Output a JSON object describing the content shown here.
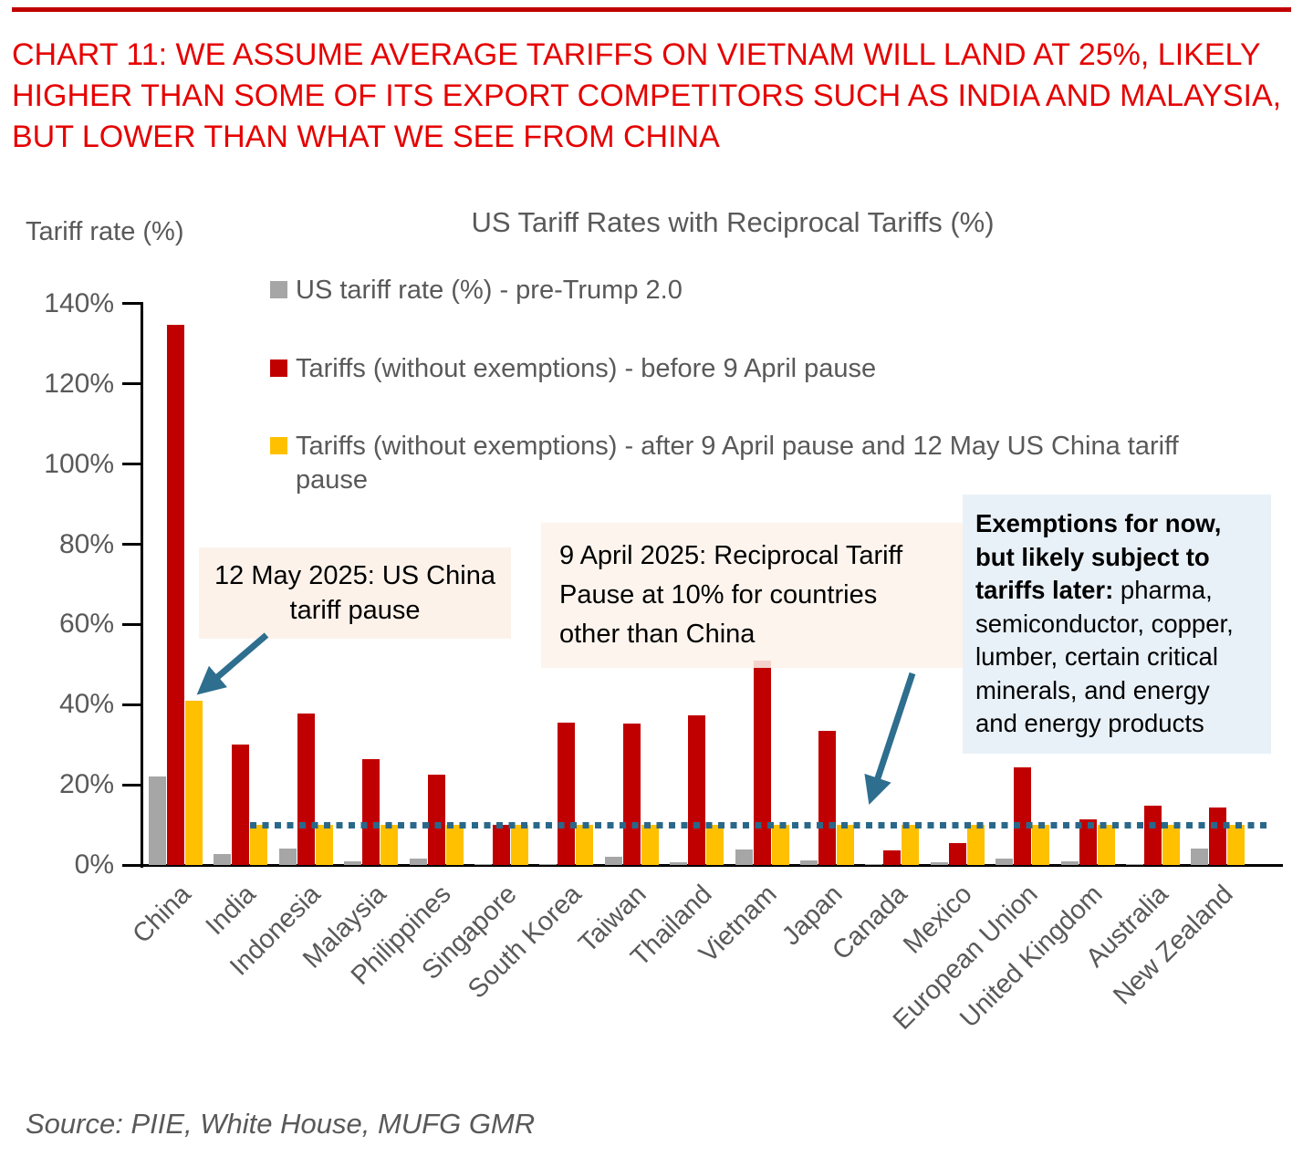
{
  "page": {
    "title": "CHART 11: WE ASSUME AVERAGE TARIFFS ON VIETNAM WILL LAND AT 25%, LIKELY HIGHER THAN SOME OF ITS EXPORT COMPETITORS SUCH AS INDIA AND MALAYSIA, BUT LOWER THAN WHAT WE SEE FROM CHINA",
    "source": "Source: PIIE, White House, MUFG GMR"
  },
  "colors": {
    "title": "#E60000",
    "top_rule": "#C00000",
    "axis_text": "#595959",
    "reference_line": "#2A688A",
    "arrow": "#2E6E8E",
    "annotation_peach": "#FCF2EA",
    "annotation_blue": "#E9F1F8"
  },
  "annotations": {
    "may12": "12 May 2025: US China tariff pause",
    "april9": "9 April 2025: Reciprocal Tariff Pause at 10% for countries other than China",
    "exemptions_bold": "Exemptions for now, but likely subject to tariffs later:",
    "exemptions_rest": " pharma, semiconductor, copper, lumber, certain critical minerals, and energy and energy products"
  },
  "chart_data": {
    "type": "bar",
    "title": "US Tariff Rates with Reciprocal Tariffs (%)",
    "ylabel": "Tariff rate (%)",
    "xlabel": "",
    "ylim": [
      0,
      140
    ],
    "yticks": [
      "0%",
      "20%",
      "40%",
      "60%",
      "80%",
      "100%",
      "120%",
      "140%"
    ],
    "grid": false,
    "legend_position": "top-left",
    "reference_line": {
      "value": 10,
      "style": "dotted"
    },
    "categories": [
      "China",
      "India",
      "Indonesia",
      "Malaysia",
      "Philippines",
      "Singapore",
      "South Korea",
      "Taiwan",
      "Thailand",
      "Vietnam",
      "Japan",
      "Canada",
      "Mexico",
      "European Union",
      "United Kingdom",
      "Australia",
      "New Zealand"
    ],
    "series": [
      {
        "name": "US tariff rate (%) - pre-Trump 2.0",
        "color": "#A6A6A6",
        "values": [
          22,
          2.8,
          4,
          1,
          1.6,
          0.2,
          0.2,
          2,
          0.8,
          3.8,
          1.2,
          0.2,
          0.6,
          1.6,
          1,
          0.3,
          4.2
        ]
      },
      {
        "name": "Tariffs (without exemptions) - before 9 April pause",
        "color": "#C00000",
        "values": [
          134.7,
          30,
          37.7,
          26.5,
          22.5,
          10,
          35.5,
          35.2,
          37.3,
          51,
          33.5,
          3.6,
          5.5,
          24.3,
          11.5,
          14.7,
          14.3
        ]
      },
      {
        "name": "Tariffs (without exemptions) - after 9 April pause and 12 May US China tariff pause",
        "color": "#FFC000",
        "values": [
          41,
          10,
          10,
          10,
          10,
          10,
          10,
          10,
          10,
          10,
          10,
          10,
          10,
          10,
          10,
          10,
          10
        ]
      }
    ]
  }
}
